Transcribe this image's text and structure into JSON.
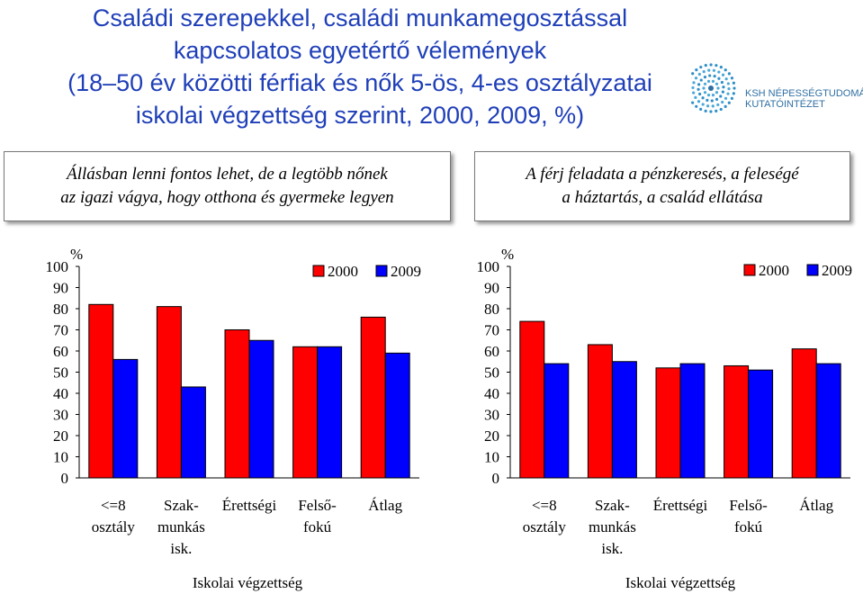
{
  "title_lines": [
    "Családi szerepekkel, családi munkamegosztással",
    "kapcsolatos egyetértő vélemények",
    "(18–50 év közötti férfiak és nők 5-ös, 4-es osztályzatai",
    "iskolai végzettség szerint, 2000, 2009, %)"
  ],
  "logo": {
    "icon": "ksh-circular-dots-logo",
    "line1": "KSH NÉPESSÉGTUDOMÁNYI",
    "line2": "KUTATÓINTÉZET"
  },
  "boxes": {
    "left": [
      "Állásban lenni fontos lehet, de a legtöbb nőnek",
      "az igazi vágya, hogy otthona és gyermeke legyen"
    ],
    "right": [
      "A férj feladata a pénzkeresés, a feleségé",
      "a háztartás, a család ellátása"
    ]
  },
  "colors": {
    "series_2000": "#ff0000",
    "series_2009": "#0000ff",
    "title": "#1f3fb8"
  },
  "chart_data": [
    {
      "type": "bar",
      "categories": [
        [
          "<=8",
          "osztály"
        ],
        [
          "Szak-",
          "munkás",
          "isk."
        ],
        [
          "Érettségi"
        ],
        [
          "Felső-",
          "fokú"
        ],
        [
          "Átlag"
        ]
      ],
      "series": [
        {
          "name": "2000",
          "values": [
            82,
            81,
            70,
            62,
            76
          ]
        },
        {
          "name": "2009",
          "values": [
            56,
            43,
            65,
            62,
            59
          ]
        }
      ],
      "ylim": [
        0,
        100
      ],
      "yticks": [
        0,
        10,
        20,
        30,
        40,
        50,
        60,
        70,
        80,
        90,
        100
      ],
      "yunit": "%",
      "xlabel": "Iskolai végzettség",
      "legend_position": "top-right",
      "grid": false
    },
    {
      "type": "bar",
      "categories": [
        [
          "<=8",
          "osztály"
        ],
        [
          "Szak-",
          "munkás",
          "isk."
        ],
        [
          "Érettségi"
        ],
        [
          "Felső-",
          "fokú"
        ],
        [
          "Átlag"
        ]
      ],
      "series": [
        {
          "name": "2000",
          "values": [
            74,
            63,
            52,
            53,
            61
          ]
        },
        {
          "name": "2009",
          "values": [
            54,
            55,
            54,
            51,
            54
          ]
        }
      ],
      "ylim": [
        0,
        100
      ],
      "yticks": [
        0,
        10,
        20,
        30,
        40,
        50,
        60,
        70,
        80,
        90,
        100
      ],
      "yunit": "%",
      "xlabel": "Iskolai végzettség",
      "legend_position": "top-right",
      "grid": false
    }
  ]
}
